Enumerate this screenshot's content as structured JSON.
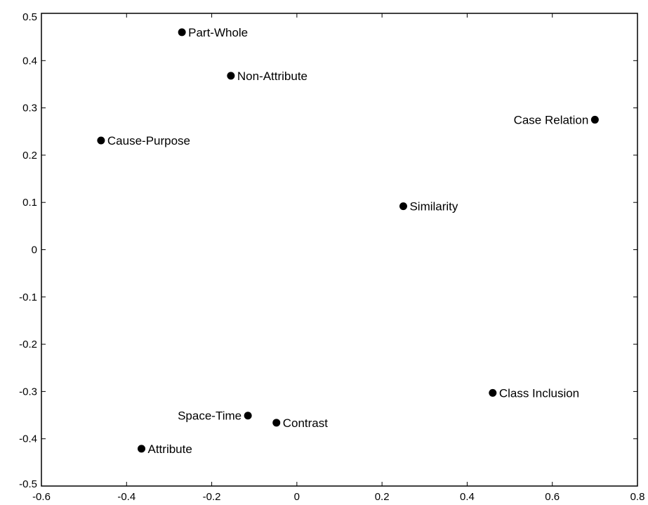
{
  "chart_data": {
    "type": "scatter",
    "title": "",
    "xlabel": "",
    "ylabel": "",
    "xlim": [
      -0.6,
      0.8
    ],
    "ylim": [
      -0.5,
      0.5
    ],
    "grid": false,
    "x_ticks": [
      -0.6,
      -0.4,
      -0.2,
      0,
      0.2,
      0.4,
      0.6,
      0.8
    ],
    "x_tick_labels": [
      "-0.6",
      "-0.4",
      "-0.2",
      "0",
      "0.2",
      "0.4",
      "0.6",
      "0.8"
    ],
    "y_ticks": [
      0.5,
      0.4,
      0.3,
      0.2,
      0.1,
      0,
      -0.1,
      -0.2,
      -0.3,
      -0.4,
      -0.5
    ],
    "y_tick_labels": [
      "0.5",
      "0.4",
      "0.3",
      "0.2",
      "0.1",
      "0",
      "-0.1",
      "-0.2",
      "-0.3",
      "-0.4",
      "-0.5"
    ],
    "point_color": "#000000",
    "points": [
      {
        "label": "Part-Whole",
        "x": -0.27,
        "y": 0.46,
        "label_side": "right"
      },
      {
        "label": "Non-Attribute",
        "x": -0.155,
        "y": 0.368,
        "label_side": "right"
      },
      {
        "label": "Case Relation",
        "x": 0.7,
        "y": 0.275,
        "label_side": "left"
      },
      {
        "label": "Cause-Purpose",
        "x": -0.46,
        "y": 0.231,
        "label_side": "right"
      },
      {
        "label": "Similarity",
        "x": 0.25,
        "y": 0.092,
        "label_side": "right"
      },
      {
        "label": "Class Inclusion",
        "x": 0.46,
        "y": -0.303,
        "label_side": "right"
      },
      {
        "label": "Space-Time",
        "x": -0.115,
        "y": -0.351,
        "label_side": "left"
      },
      {
        "label": "Contrast",
        "x": -0.048,
        "y": -0.366,
        "label_side": "right"
      },
      {
        "label": "Attribute",
        "x": -0.365,
        "y": -0.421,
        "label_side": "right"
      }
    ]
  }
}
